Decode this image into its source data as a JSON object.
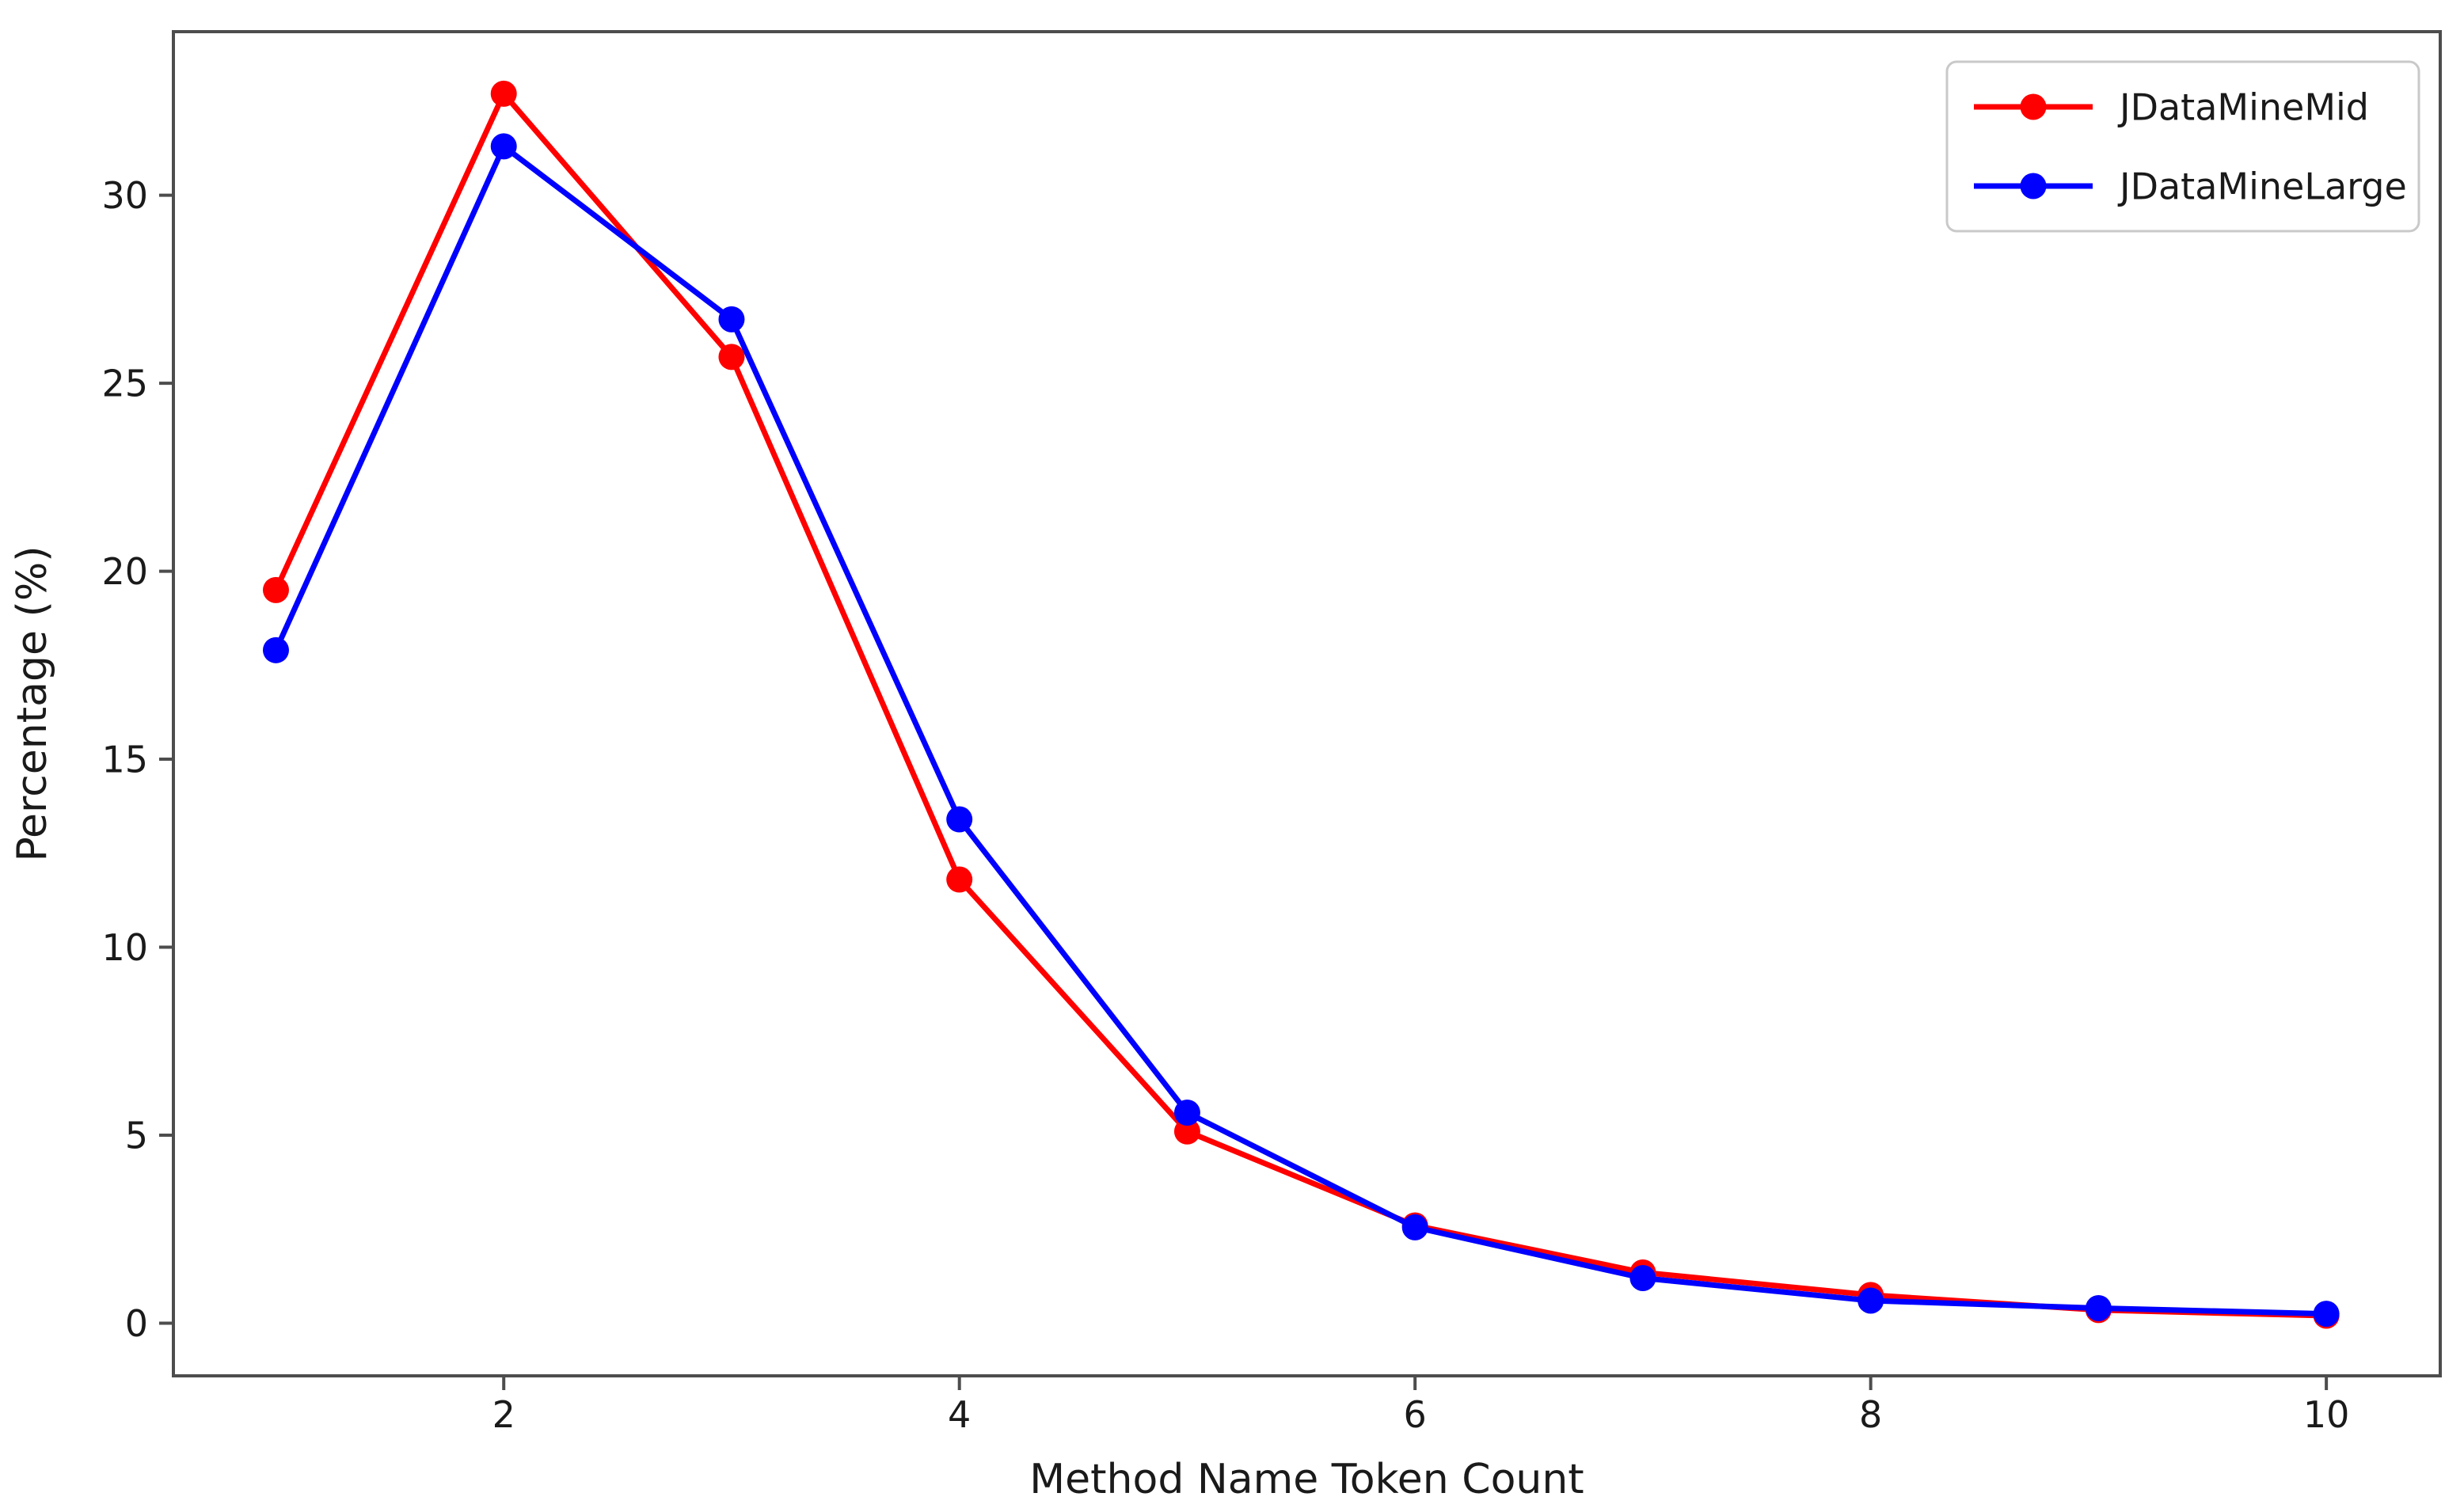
{
  "figure": {
    "background": "#ffffff"
  },
  "chart_data": {
    "type": "line",
    "title": "",
    "xlabel": "Method Name Token Count",
    "ylabel": "Percentage (%)",
    "x": [
      1,
      2,
      3,
      4,
      5,
      6,
      7,
      8,
      9,
      10
    ],
    "series": [
      {
        "name": "JDataMineMid",
        "color": "#ff0000",
        "marker": "circle",
        "values": [
          19.5,
          32.7,
          25.7,
          11.8,
          5.1,
          2.6,
          1.35,
          0.75,
          0.35,
          0.2
        ]
      },
      {
        "name": "JDataMineLarge",
        "color": "#0000ff",
        "marker": "circle",
        "values": [
          17.9,
          31.3,
          26.7,
          13.4,
          5.6,
          2.55,
          1.2,
          0.6,
          0.4,
          0.25
        ]
      }
    ],
    "xticks": [
      2,
      4,
      6,
      8,
      10
    ],
    "yticks": [
      0,
      5,
      10,
      15,
      20,
      25,
      30
    ],
    "xlim": [
      0.55,
      10.5
    ],
    "ylim": [
      -1.4,
      34.35
    ],
    "grid": false,
    "legend": {
      "position": "upper right",
      "entries": [
        "JDataMineMid",
        "JDataMineLarge"
      ]
    },
    "axis_color": "#4d4d4d",
    "text_color": "#1a1a1a",
    "legend_border_color": "#c9c9c9"
  }
}
